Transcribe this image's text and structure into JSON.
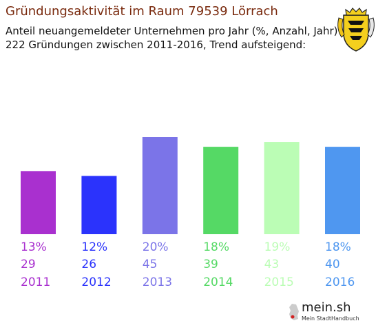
{
  "header": {
    "title": "Gründungsaktivität im Raum 79539 Lörrach",
    "subtitle_line1": "Anteil neuangemeldeter Unternehmen pro Jahr (%, Anzahl, Jahr)",
    "subtitle_line2": "222 Gründungen zwischen 2011-2016, Trend aufsteigend:"
  },
  "crest_icon": "baden-wuerttemberg-coat-of-arms-icon",
  "brand": {
    "name": "mein.sh",
    "tagline": "Mein StadtHandbuch",
    "icon": "germany-map-icon"
  },
  "chart_data": {
    "type": "bar",
    "categories": [
      "2011",
      "2012",
      "2013",
      "2014",
      "2015",
      "2016"
    ],
    "values": [
      13,
      12,
      20,
      18,
      19,
      18
    ],
    "percent_labels": [
      "13%",
      "12%",
      "20%",
      "18%",
      "19%",
      "18%"
    ],
    "counts": [
      29,
      26,
      45,
      39,
      43,
      40
    ],
    "colors": [
      "#a930cf",
      "#2b33fc",
      "#7b74e8",
      "#55d965",
      "#bbfdb5",
      "#4f97f0"
    ],
    "ylim": [
      0,
      20
    ],
    "grid": false,
    "legend": "none"
  }
}
